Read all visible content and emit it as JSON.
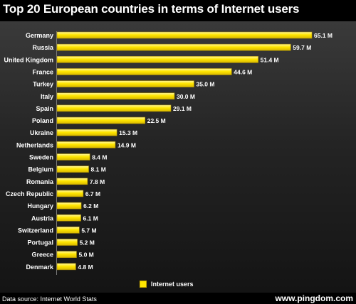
{
  "chart_data": {
    "type": "bar",
    "orientation": "horizontal",
    "title": "Top 20 European countries in terms of Internet users",
    "categories": [
      "Germany",
      "Russia",
      "United Kingdom",
      "France",
      "Turkey",
      "Italy",
      "Spain",
      "Poland",
      "Ukraine",
      "Netherlands",
      "Sweden",
      "Belgium",
      "Romania",
      "Czech Republic",
      "Hungary",
      "Austria",
      "Switzerland",
      "Portugal",
      "Greece",
      "Denmark"
    ],
    "series": [
      {
        "name": "Internet users",
        "values": [
          65.1,
          59.7,
          51.4,
          44.6,
          35.0,
          30.0,
          29.1,
          22.5,
          15.3,
          14.9,
          8.4,
          8.1,
          7.8,
          6.7,
          6.2,
          6.1,
          5.7,
          5.2,
          5.0,
          4.8
        ]
      }
    ],
    "value_labels": [
      "65.1 M",
      "59.7 M",
      "51.4 M",
      "44.6 M",
      "35.0 M",
      "30.0 M",
      "29.1 M",
      "22.5 M",
      "15.3 M",
      "14.9 M",
      "8.4 M",
      "8.1 M",
      "7.8 M",
      "6.7 M",
      "6.2 M",
      "6.1 M",
      "5.7 M",
      "5.2 M",
      "5.0 M",
      "4.8 M"
    ],
    "unit": "M",
    "xlim": [
      0,
      65.1
    ],
    "legend_placement": "bottom",
    "bar_color": "#ffe600",
    "grid": false
  },
  "footer": {
    "source": "Data source: Internet World Stats",
    "brand": "www.pingdom.com"
  }
}
